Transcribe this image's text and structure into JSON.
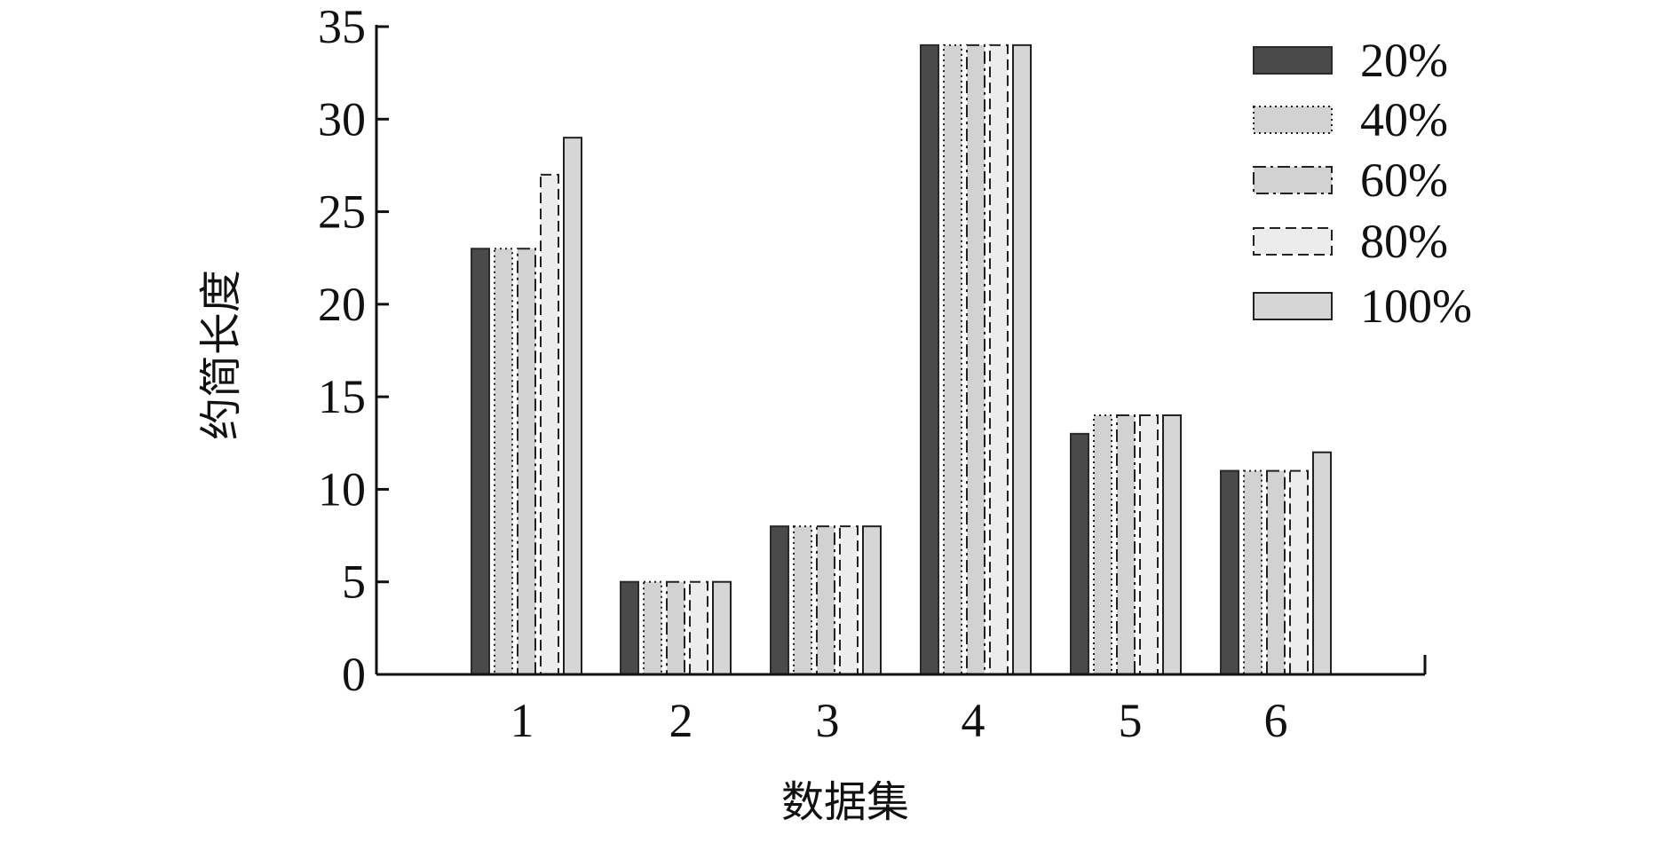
{
  "chart_data": {
    "type": "bar",
    "title": "",
    "xlabel": "数据集",
    "ylabel": "约简长度",
    "categories": [
      "1",
      "2",
      "3",
      "4",
      "5",
      "6"
    ],
    "ylim": [
      0,
      35
    ],
    "yticks": [
      "0",
      "5",
      "10",
      "15",
      "20",
      "25",
      "30",
      "35"
    ],
    "grid": false,
    "legend_position": "top-right",
    "series": [
      {
        "name": "20%",
        "values": [
          23,
          5,
          8,
          34,
          13,
          11
        ],
        "fill": "#4a4a4a",
        "pattern": "solid-dark"
      },
      {
        "name": "40%",
        "values": [
          23,
          5,
          8,
          34,
          14,
          11
        ],
        "fill": "#d2d2d2",
        "pattern": "dotted"
      },
      {
        "name": "60%",
        "values": [
          23,
          5,
          8,
          34,
          14,
          11
        ],
        "fill": "#d2d2d2",
        "pattern": "dash-dot"
      },
      {
        "name": "80%",
        "values": [
          27,
          5,
          8,
          34,
          14,
          11
        ],
        "fill": "#ececec",
        "pattern": "dashed"
      },
      {
        "name": "100%",
        "values": [
          29,
          5,
          8,
          34,
          14,
          12
        ],
        "fill": "#d6d6d6",
        "pattern": "solid-light"
      }
    ]
  }
}
